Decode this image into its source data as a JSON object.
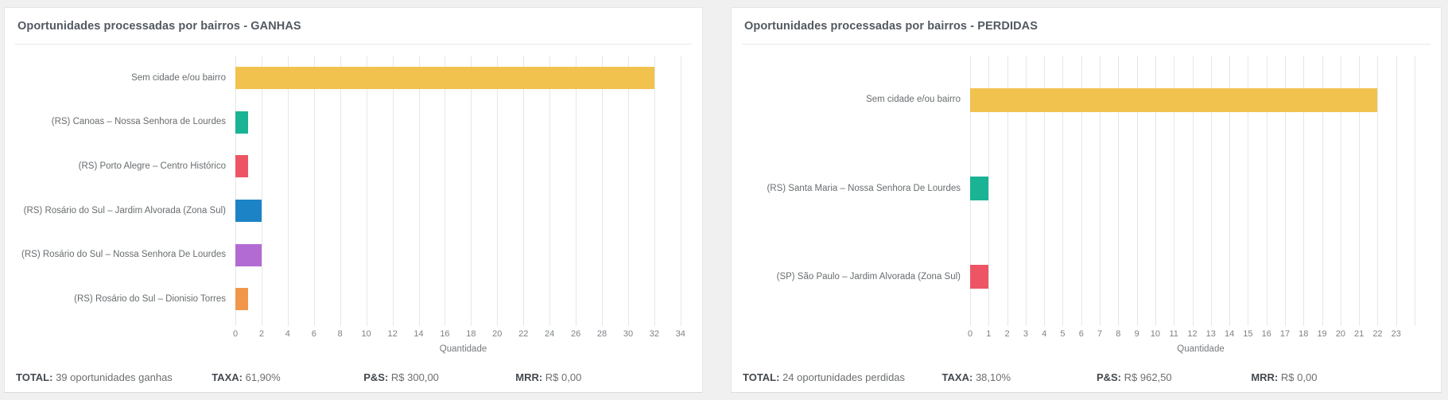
{
  "theme": {
    "page_bg": "#f0f0f1",
    "card_bg": "#ffffff",
    "grid_color": "#e3e7ea",
    "title_color": "#525960"
  },
  "chart_data": [
    {
      "type": "bar",
      "orientation": "horizontal",
      "title": "Oportunidades processadas por bairros - GANHAS",
      "xlabel": "Quantidade",
      "categories": [
        "Sem cidade e/ou bairro",
        "(RS) Canoas – Nossa Senhora de Lourdes",
        "(RS) Porto Alegre – Centro Histórico",
        "(RS) Rosário do Sul – Jardim Alvorada (Zona Sul)",
        "(RS) Rosário do Sul – Nossa Senhora De Lourdes",
        "(RS) Rosário do Sul – Dionisio Torres"
      ],
      "values": [
        32,
        1,
        1,
        2,
        2,
        1
      ],
      "bar_colors": [
        "#f2c24e",
        "#1ab394",
        "#ed5565",
        "#1c84c6",
        "#b36bd4",
        "#f0974b"
      ],
      "xlim": [
        0,
        34.8
      ],
      "xticks": [
        0,
        2,
        4,
        6,
        8,
        10,
        12,
        14,
        16,
        18,
        20,
        22,
        24,
        26,
        28,
        30,
        32,
        34
      ],
      "extra_gridlines": [],
      "grid": true,
      "legend": false
    },
    {
      "type": "bar",
      "orientation": "horizontal",
      "title": "Oportunidades processadas por bairros - PERDIDAS",
      "xlabel": "Quantidade",
      "categories": [
        "Sem cidade e/ou bairro",
        "(RS) Santa Maria – Nossa Senhora De Lourdes",
        "(SP) São Paulo – Jardim Alvorada (Zona Sul)"
      ],
      "values": [
        22,
        1,
        1
      ],
      "bar_colors": [
        "#f2c24e",
        "#1ab394",
        "#ed5565"
      ],
      "xlim": [
        0,
        24.9
      ],
      "xticks": [
        0,
        1,
        2,
        3,
        4,
        5,
        6,
        7,
        8,
        9,
        10,
        11,
        12,
        13,
        14,
        15,
        16,
        17,
        18,
        19,
        20,
        21,
        22,
        23
      ],
      "extra_gridlines": [
        24
      ],
      "grid": true,
      "legend": false
    }
  ],
  "panels": [
    {
      "stats": [
        {
          "label": "TOTAL:",
          "value": "39 oportunidades ganhas"
        },
        {
          "label": "TAXA:",
          "value": "61,90%"
        },
        {
          "label": "P&S:",
          "value": "R$ 300,00"
        },
        {
          "label": "MRR:",
          "value": "R$ 0,00"
        }
      ]
    },
    {
      "stats": [
        {
          "label": "TOTAL:",
          "value": "24 oportunidades perdidas"
        },
        {
          "label": "TAXA:",
          "value": "38,10%"
        },
        {
          "label": "P&S:",
          "value": "R$ 962,50"
        },
        {
          "label": "MRR:",
          "value": "R$ 0,00"
        }
      ]
    }
  ]
}
